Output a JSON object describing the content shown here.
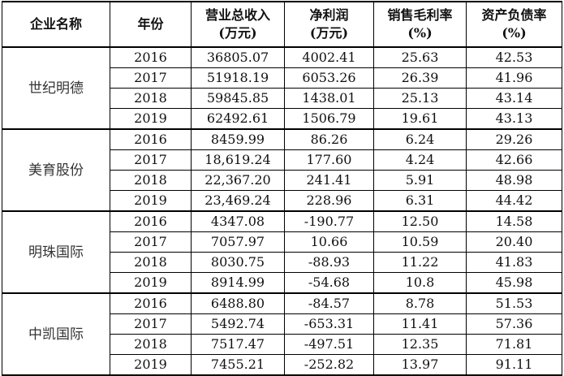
{
  "header": [
    [
      "企业名称"
    ],
    [
      "年份"
    ],
    [
      "营业总收入",
      "(万元)"
    ],
    [
      "净利润",
      "(万元)"
    ],
    [
      "销售毛利率",
      "(%)"
    ],
    [
      "资产负债率",
      "(%)"
    ]
  ],
  "groups": [
    {
      "name": "世纪明德",
      "rows": [
        [
          "2016",
          "36805.07",
          "4002.41",
          "25.63",
          "42.53"
        ],
        [
          "2017",
          "51918.19",
          "6053.26",
          "26.39",
          "41.96"
        ],
        [
          "2018",
          "59845.85",
          "1438.01",
          "25.13",
          "43.14"
        ],
        [
          "2019",
          "62492.61",
          "1506.79",
          "19.61",
          "43.13"
        ]
      ]
    },
    {
      "name": "美育股份",
      "rows": [
        [
          "2016",
          "8459.99",
          "86.26",
          "6.24",
          "29.26"
        ],
        [
          "2017",
          "18,619.24",
          "177.60",
          "4.24",
          "42.66"
        ],
        [
          "2018",
          "22,367.20",
          "241.41",
          "5.91",
          "48.98"
        ],
        [
          "2019",
          "23,469.24",
          "228.96",
          "6.31",
          "44.42"
        ]
      ]
    },
    {
      "name": "明珠国际",
      "rows": [
        [
          "2016",
          "4347.08",
          "-190.77",
          "12.50",
          "14.58"
        ],
        [
          "2017",
          "7057.97",
          "10.66",
          "10.59",
          "20.40"
        ],
        [
          "2018",
          "8030.75",
          "-88.93",
          "11.22",
          "41.83"
        ],
        [
          "2019",
          "8914.99",
          "-54.68",
          "10.8",
          "45.98"
        ]
      ]
    },
    {
      "name": "中凯国际",
      "rows": [
        [
          "2016",
          "6488.80",
          "-84.57",
          "8.78",
          "51.53"
        ],
        [
          "2017",
          "5492.74",
          "-653.31",
          "11.41",
          "57.36"
        ],
        [
          "2018",
          "7517.47",
          "-497.51",
          "12.35",
          "71.81"
        ],
        [
          "2019",
          "7455.21",
          "-252.82",
          "13.97",
          "91.11"
        ]
      ]
    }
  ]
}
